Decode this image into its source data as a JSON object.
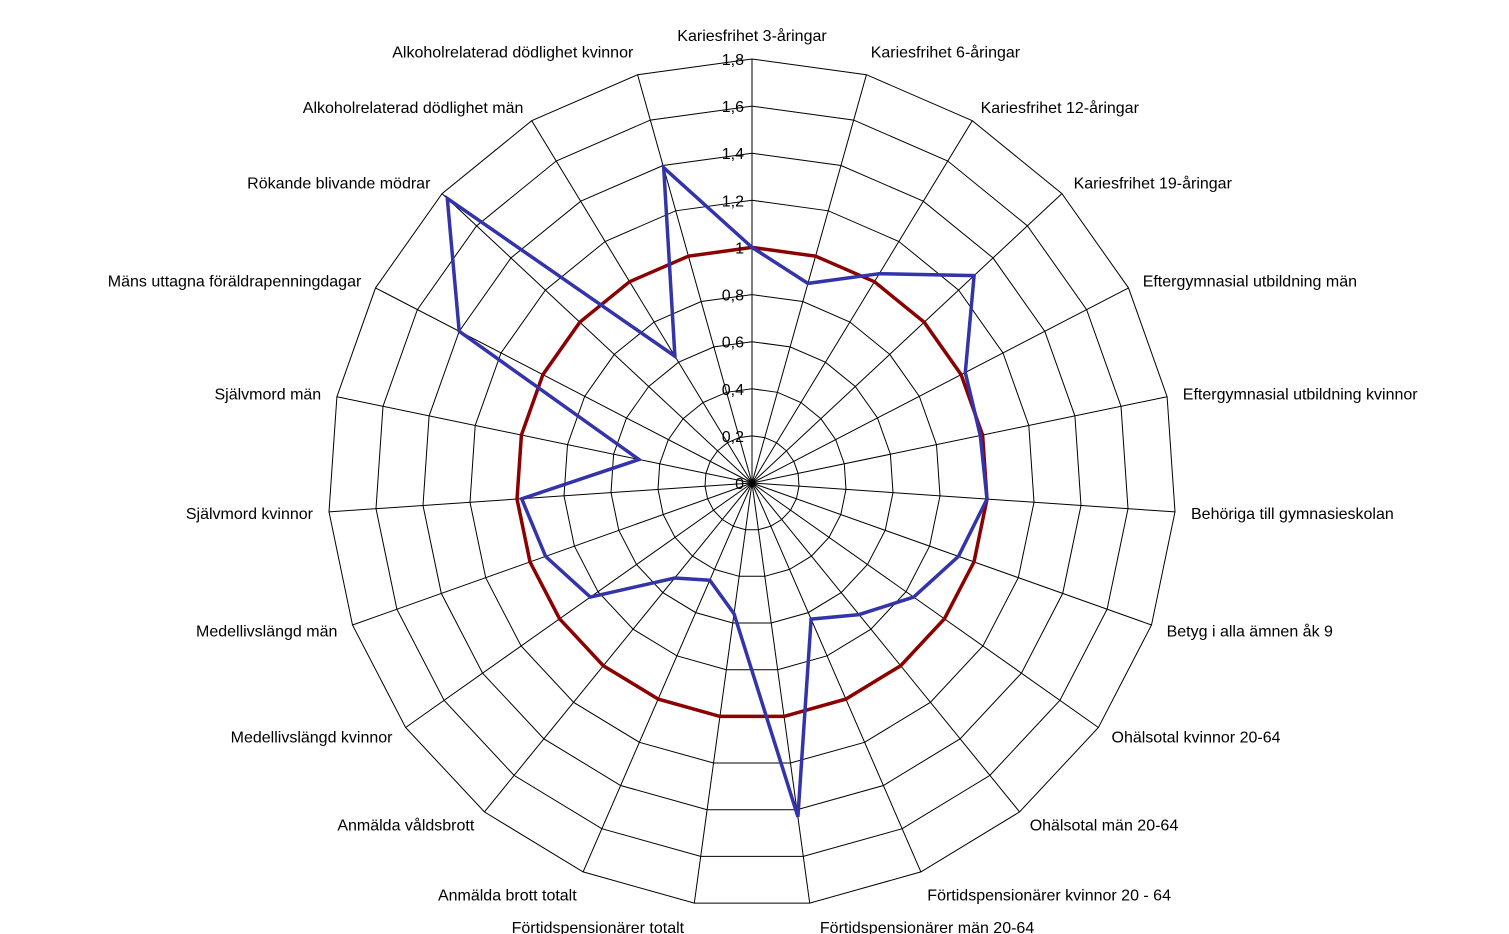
{
  "chart_data": {
    "type": "radar",
    "title": "",
    "categories": [
      "Kariesfrihet 3-åringar",
      "Kariesfrihet 6-åringar",
      "Kariesfrihet 12-åringar",
      "Kariesfrihet 19-åringar",
      "Eftergymnasial utbildning män",
      "Eftergymnasial utbildning kvinnor",
      "Behöriga till gymnasieskolan",
      "Betyg i alla ämnen åk 9",
      "Ohälsotal kvinnor 20-64",
      "Ohälsotal män 20-64",
      "Förtidspensionärer kvinnor 20 - 64",
      "Förtidspensionärer män 20-64",
      "Förtidspensionärer totalt",
      "Anmälda brott totalt",
      "Anmälda våldsbrott",
      "Medellivslängd kvinnor",
      "Medellivslängd män",
      "Självmord kvinnor",
      "Självmord män",
      "Mäns uttagna föräldrapenningdagar",
      "Rökande blivande mödrar",
      "Alkoholrelaterad dödlighet män",
      "Alkoholrelaterad dödlighet kvinnor"
    ],
    "series": [
      {
        "values": [
          1.0,
          0.88,
          1.04,
          1.29,
          1.02,
          0.99,
          1.0,
          0.93,
          0.84,
          0.72,
          0.63,
          1.43,
          0.56,
          0.45,
          0.52,
          0.84,
          0.93,
          0.98,
          0.49,
          1.4,
          1.77,
          0.63,
          1.39
        ],
        "color": "#3333aa"
      },
      {
        "values": [
          1.0,
          1.0,
          1.0,
          1.0,
          1.0,
          1.0,
          1.0,
          1.0,
          1.0,
          1.0,
          1.0,
          1.0,
          1.0,
          1.0,
          1.0,
          1.0,
          1.0,
          1.0,
          1.0,
          1.0,
          1.0,
          1.0,
          1.0
        ],
        "color": "#8b0000"
      }
    ],
    "rlim": [
      0,
      1.8
    ],
    "ticks": [
      0,
      0.2,
      0.4,
      0.6,
      0.8,
      1,
      1.2,
      1.4,
      1.6,
      1.8
    ],
    "tick_labels": [
      "0",
      "0,2",
      "0,4",
      "0,6",
      "0,8",
      "1",
      "1,2",
      "1,4",
      "1,6",
      "1,8"
    ],
    "grid": true,
    "legend": "none"
  }
}
